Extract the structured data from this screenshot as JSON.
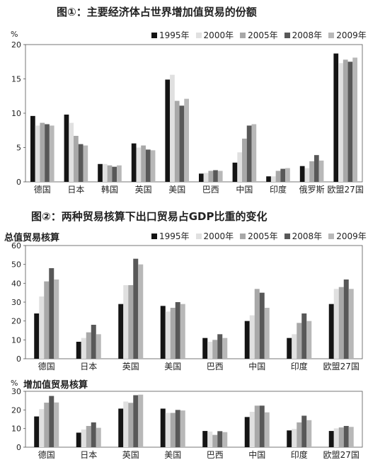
{
  "figure1": {
    "title": "图①：主要经济体占世界增加值贸易的份额",
    "unit": "%"
  },
  "figure2": {
    "title": "图②：两种贸易核算下出口贸易占GDP比重的变化",
    "panel_a_label": "总值贸易核算",
    "panel_b_label": "增加值贸易核算",
    "unit_b": "%"
  },
  "legend": [
    {
      "name": "1995年",
      "color": "#141414"
    },
    {
      "name": "2000年",
      "color": "#e0e0e0"
    },
    {
      "name": "2005年",
      "color": "#a8a8a8"
    },
    {
      "name": "2008年",
      "color": "#585858"
    },
    {
      "name": "2009年",
      "color": "#b8b8b8"
    }
  ],
  "chart_data": [
    {
      "type": "bar",
      "title": "图①：主要经济体占世界增加值贸易的份额",
      "ylabel": "%",
      "ylim": [
        0,
        20
      ],
      "yticks": [
        0,
        5,
        10,
        15,
        20
      ],
      "categories": [
        "德国",
        "日本",
        "韩国",
        "英国",
        "美国",
        "巴西",
        "中国",
        "印度",
        "俄罗斯",
        "欧盟27国"
      ],
      "series": [
        {
          "name": "1995年",
          "values": [
            9.6,
            9.8,
            2.6,
            5.6,
            14.9,
            1.2,
            2.8,
            0.8,
            2.3,
            18.7
          ]
        },
        {
          "name": "2000年",
          "values": [
            8.2,
            8.6,
            2.6,
            5.0,
            15.6,
            1.3,
            4.3,
            0.8,
            2.0,
            17.3
          ]
        },
        {
          "name": "2005年",
          "values": [
            8.6,
            6.7,
            2.4,
            5.3,
            11.8,
            1.6,
            6.3,
            1.6,
            3.0,
            17.8
          ]
        },
        {
          "name": "2008年",
          "values": [
            8.4,
            5.5,
            2.2,
            4.7,
            11.1,
            1.7,
            8.2,
            1.9,
            3.9,
            17.5
          ]
        },
        {
          "name": "2009年",
          "values": [
            8.2,
            5.3,
            2.4,
            4.6,
            12.1,
            1.6,
            8.4,
            2.0,
            3.1,
            18.1
          ]
        }
      ],
      "legend_position": "top"
    },
    {
      "type": "bar",
      "title": "总值贸易核算",
      "ylabel": "%",
      "ylim": [
        0,
        60
      ],
      "yticks": [
        0,
        10,
        20,
        30,
        40,
        50,
        60
      ],
      "categories": [
        "德国",
        "日本",
        "英国",
        "美国",
        "巴西",
        "中国",
        "印度",
        "欧盟27国"
      ],
      "series": [
        {
          "name": "1995年",
          "values": [
            24,
            9,
            29,
            28,
            11,
            20,
            11,
            29
          ]
        },
        {
          "name": "2000年",
          "values": [
            33,
            11,
            39,
            25,
            9,
            23,
            13,
            37
          ]
        },
        {
          "name": "2005年",
          "values": [
            41,
            14,
            39,
            27,
            10,
            37,
            19,
            38
          ]
        },
        {
          "name": "2008年",
          "values": [
            48,
            18,
            53,
            30,
            13,
            35,
            24,
            42
          ]
        },
        {
          "name": "2009年",
          "values": [
            42,
            13,
            50,
            29,
            11,
            27,
            20,
            37
          ]
        }
      ],
      "legend_position": "top"
    },
    {
      "type": "bar",
      "title": "增加值贸易核算",
      "ylabel": "%",
      "ylim": [
        0,
        30
      ],
      "yticks": [
        0,
        10,
        20,
        30
      ],
      "categories": [
        "德国",
        "日本",
        "英国",
        "美国",
        "巴西",
        "中国",
        "印度",
        "欧盟27国"
      ],
      "series": [
        {
          "name": "1995年",
          "values": [
            16.5,
            7.8,
            20.7,
            20.7,
            8.7,
            16.2,
            9.0,
            8.7
          ]
        },
        {
          "name": "2000年",
          "values": [
            20.4,
            9.5,
            24.5,
            18.4,
            8.4,
            19.0,
            9.8,
            10.1
          ]
        },
        {
          "name": "2005年",
          "values": [
            23.9,
            11.4,
            23.8,
            18.4,
            6.6,
            22.3,
            13.3,
            10.6
          ]
        },
        {
          "name": "2008年",
          "values": [
            27.5,
            13.3,
            27.9,
            20.0,
            8.6,
            22.3,
            16.9,
            11.4
          ]
        },
        {
          "name": "2009年",
          "values": [
            24.0,
            10.4,
            28.2,
            19.7,
            8.1,
            18.7,
            14.5,
            10.9
          ]
        }
      ]
    }
  ]
}
